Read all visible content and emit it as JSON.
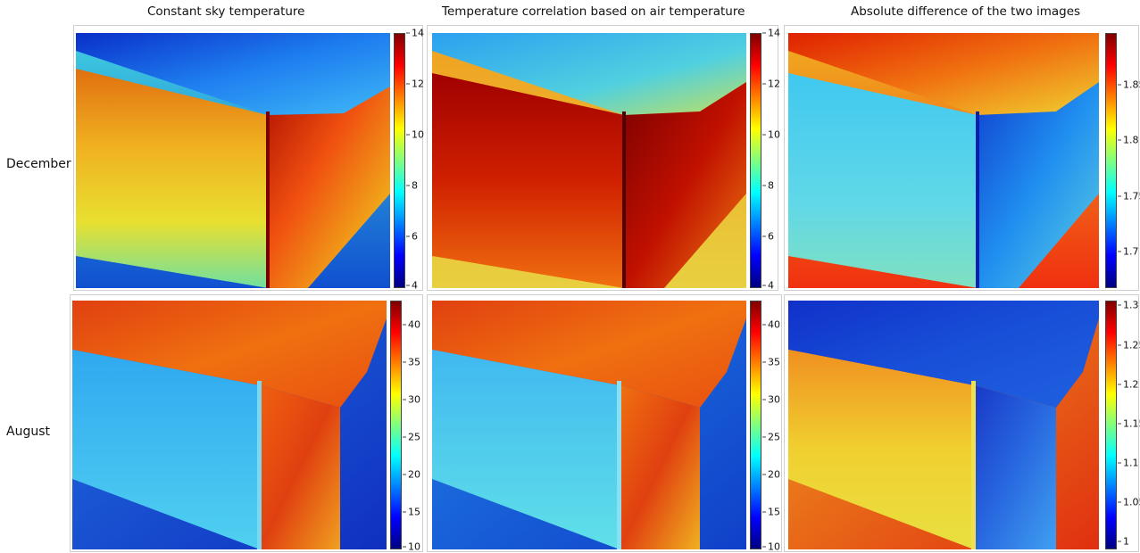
{
  "columns": [
    {
      "title": "Constant sky temperature"
    },
    {
      "title": "Temperature correlation based on air temperature"
    },
    {
      "title": "Absolute difference of the two images"
    }
  ],
  "rows": [
    {
      "label": "December"
    },
    {
      "label": "August"
    }
  ],
  "colorbars": {
    "dec_temp": [
      "14",
      "12",
      "10",
      "8",
      "6",
      "4"
    ],
    "dec_diff": [
      "1.85",
      "1.8",
      "1.75",
      "1.7"
    ],
    "aug_temp": [
      "40",
      "35",
      "30",
      "25",
      "20",
      "15",
      "10"
    ],
    "aug_diff": [
      "1.3",
      "1.25",
      "1.2",
      "1.15",
      "1.1",
      "1.05",
      "1"
    ]
  },
  "colormap": "jet"
}
